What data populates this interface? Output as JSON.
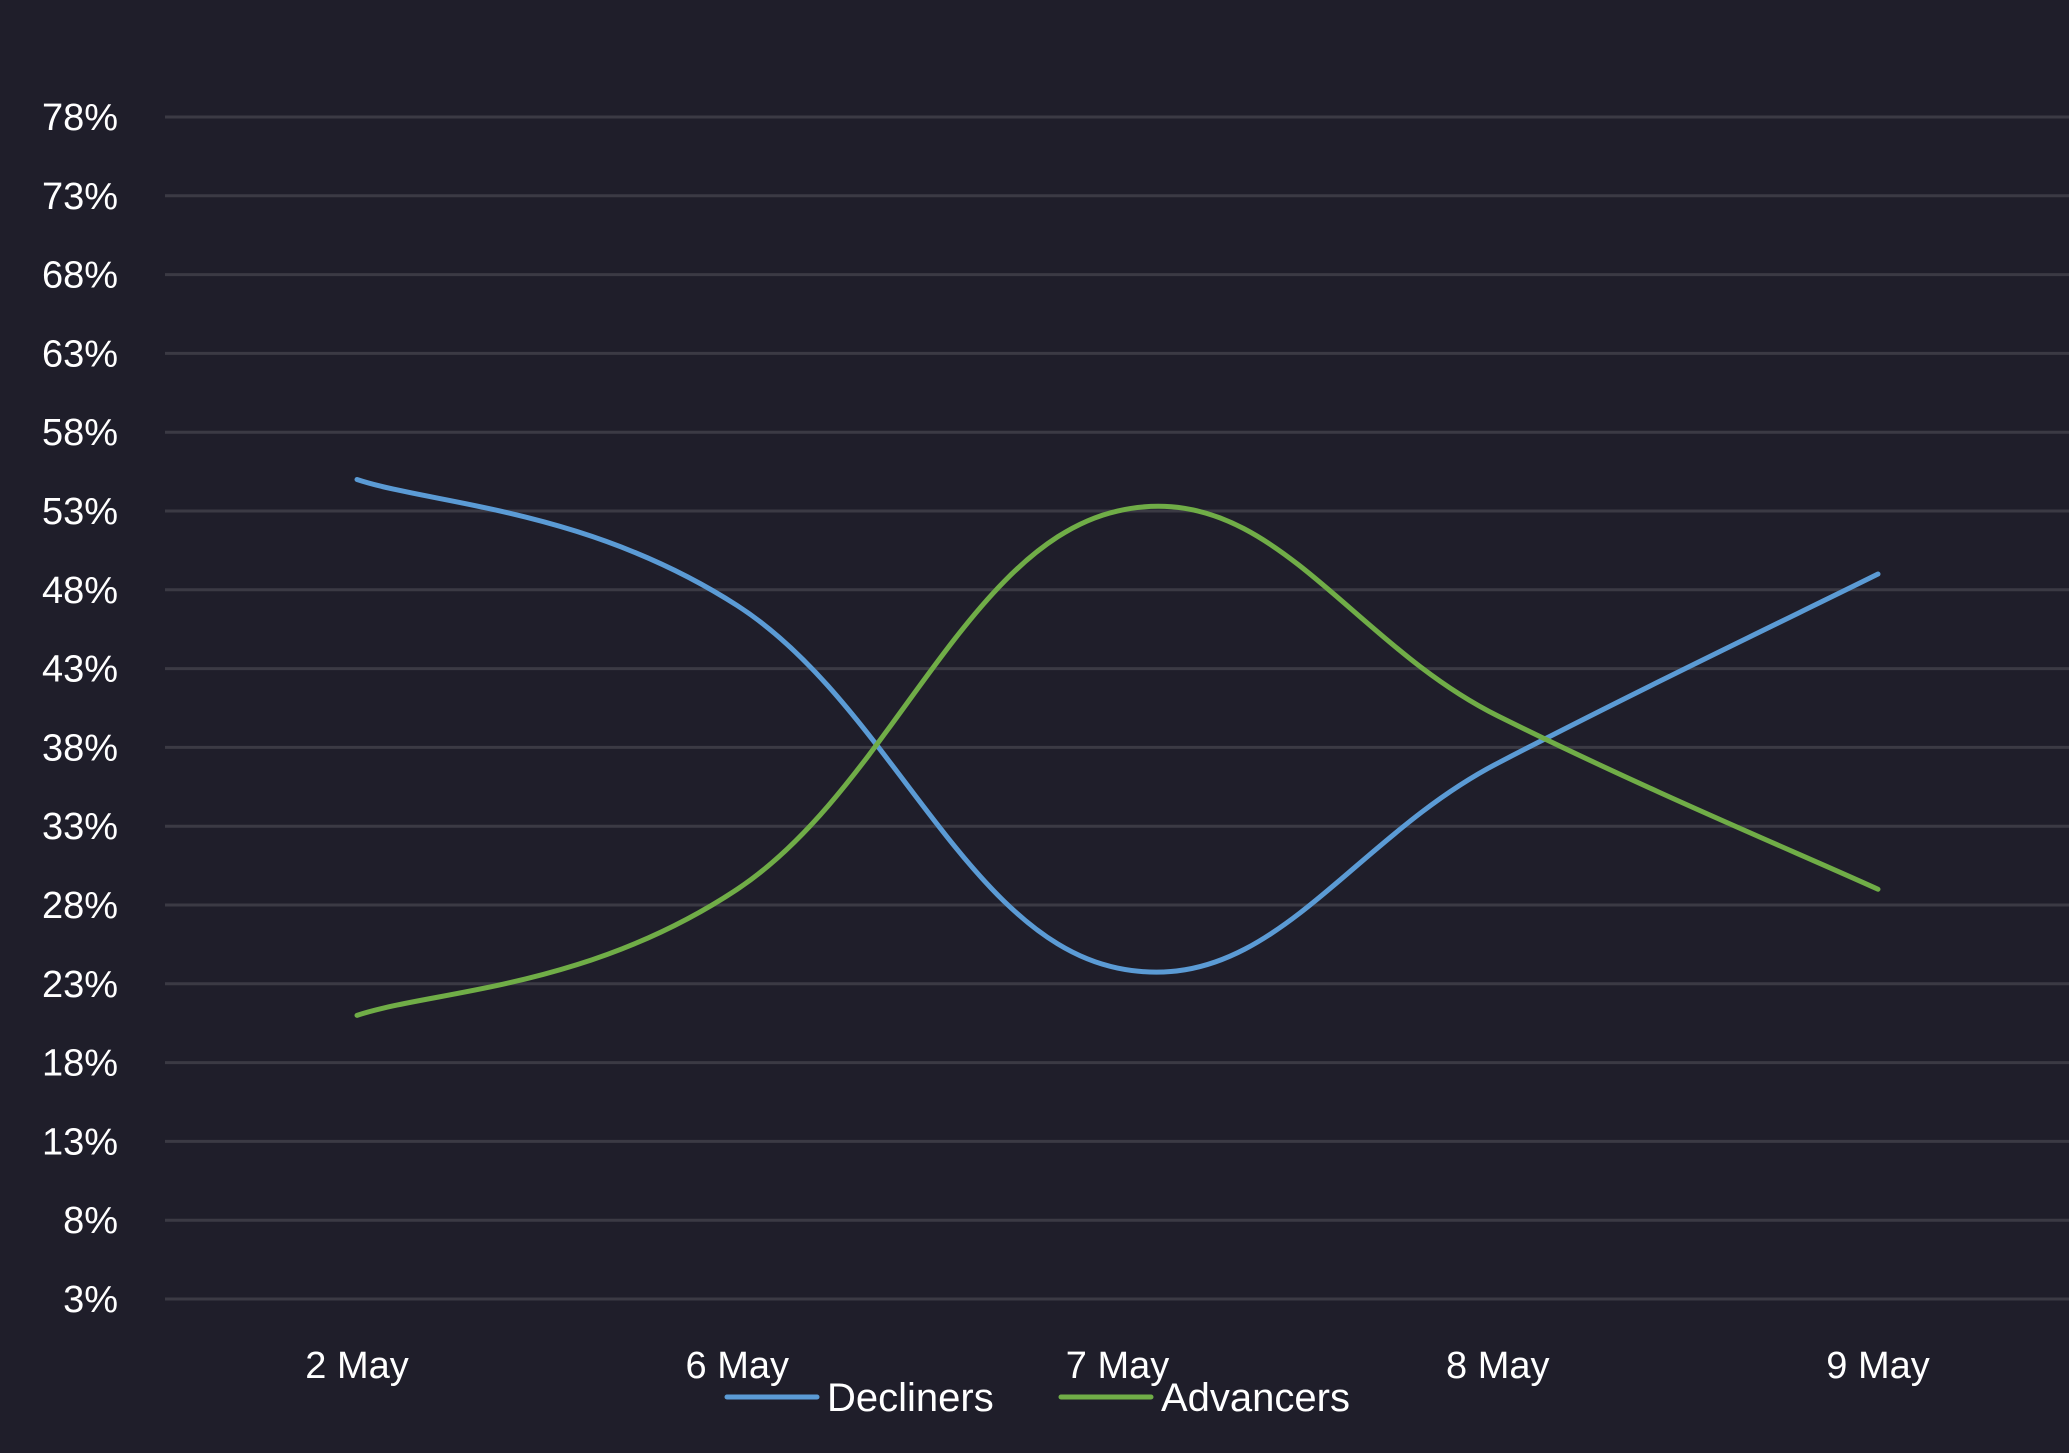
{
  "chart_data": {
    "type": "line",
    "categories": [
      "2 May",
      "6 May",
      "7 May",
      "8 May",
      "9 May"
    ],
    "series": [
      {
        "name": "Decliners",
        "values": [
          55,
          47,
          24,
          37,
          49
        ],
        "color": "#5b9bd5"
      },
      {
        "name": "Advancers",
        "values": [
          21,
          29,
          53,
          40,
          29
        ],
        "color": "#70ad47"
      }
    ],
    "yticks": [
      "3%",
      "8%",
      "13%",
      "18%",
      "23%",
      "28%",
      "33%",
      "38%",
      "43%",
      "48%",
      "53%",
      "58%",
      "63%",
      "68%",
      "73%",
      "78%"
    ],
    "ytick_values": [
      3,
      8,
      13,
      18,
      23,
      28,
      33,
      38,
      43,
      48,
      53,
      58,
      63,
      68,
      73,
      78
    ],
    "ylim": [
      3,
      78
    ],
    "grid": true,
    "smooth": true,
    "legend_position": "bottom-center",
    "gridline_color": "#3b3a44",
    "background_color": "#1f1e2a"
  }
}
